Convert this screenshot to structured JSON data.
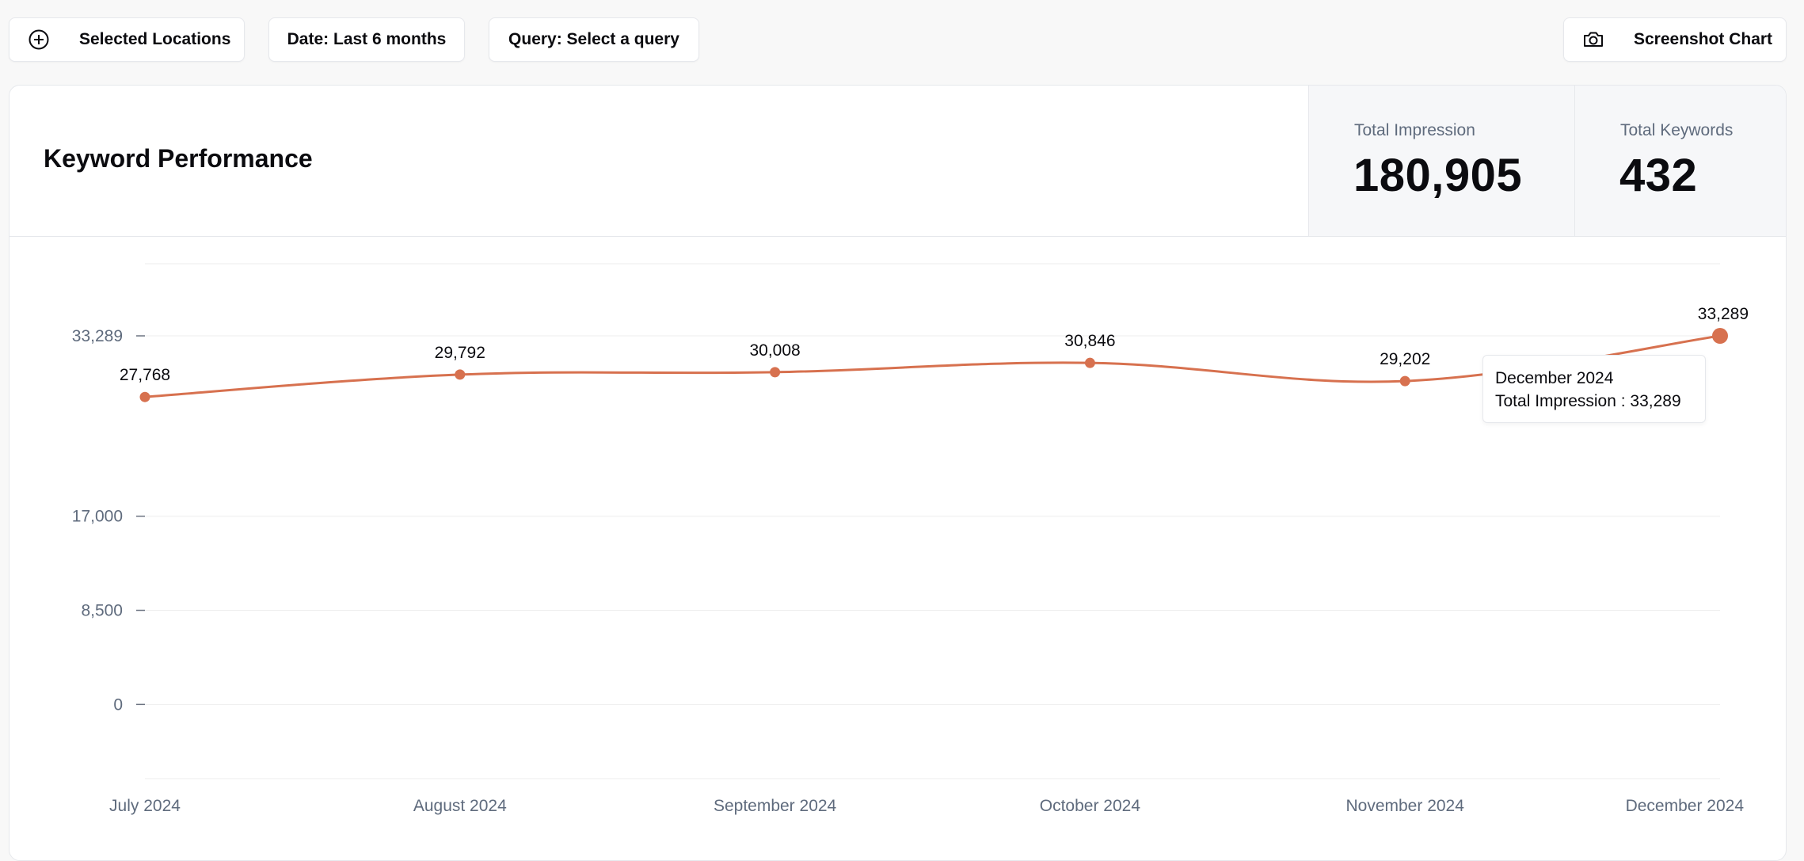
{
  "toolbar": {
    "locations_label": "Selected Locations",
    "date_label": "Date: Last 6 months",
    "query_label": "Query: Select a query",
    "screenshot_label": "Screenshot Chart"
  },
  "card": {
    "title": "Keyword Performance",
    "stats": {
      "impressions_label": "Total Impression",
      "impressions_value": "180,905",
      "keywords_label": "Total Keywords",
      "keywords_value": "432"
    }
  },
  "tooltip": {
    "title": "December 2024",
    "series_label": "Total Impression",
    "value": "33,289"
  },
  "colors": {
    "line": "#d7714f",
    "grid": "#eeeeee",
    "axis_text": "#5f6b7d"
  },
  "chart_data": {
    "type": "line",
    "categories": [
      "July 2024",
      "August 2024",
      "September 2024",
      "October 2024",
      "November 2024",
      "December 2024"
    ],
    "series": [
      {
        "values": [
          27768,
          29792,
          30008,
          30846,
          29202,
          33289
        ]
      }
    ],
    "data_labels": [
      "27,768",
      "29,792",
      "30,008",
      "30,846",
      "29,202",
      "33,289"
    ],
    "y_ticks": [
      0,
      8500,
      17000,
      33289
    ],
    "y_tick_labels": [
      "0",
      "8,500",
      "17,000",
      "33,289"
    ],
    "ylim": [
      -6700,
      39800
    ],
    "grid": true,
    "highlighted_index": 5
  }
}
